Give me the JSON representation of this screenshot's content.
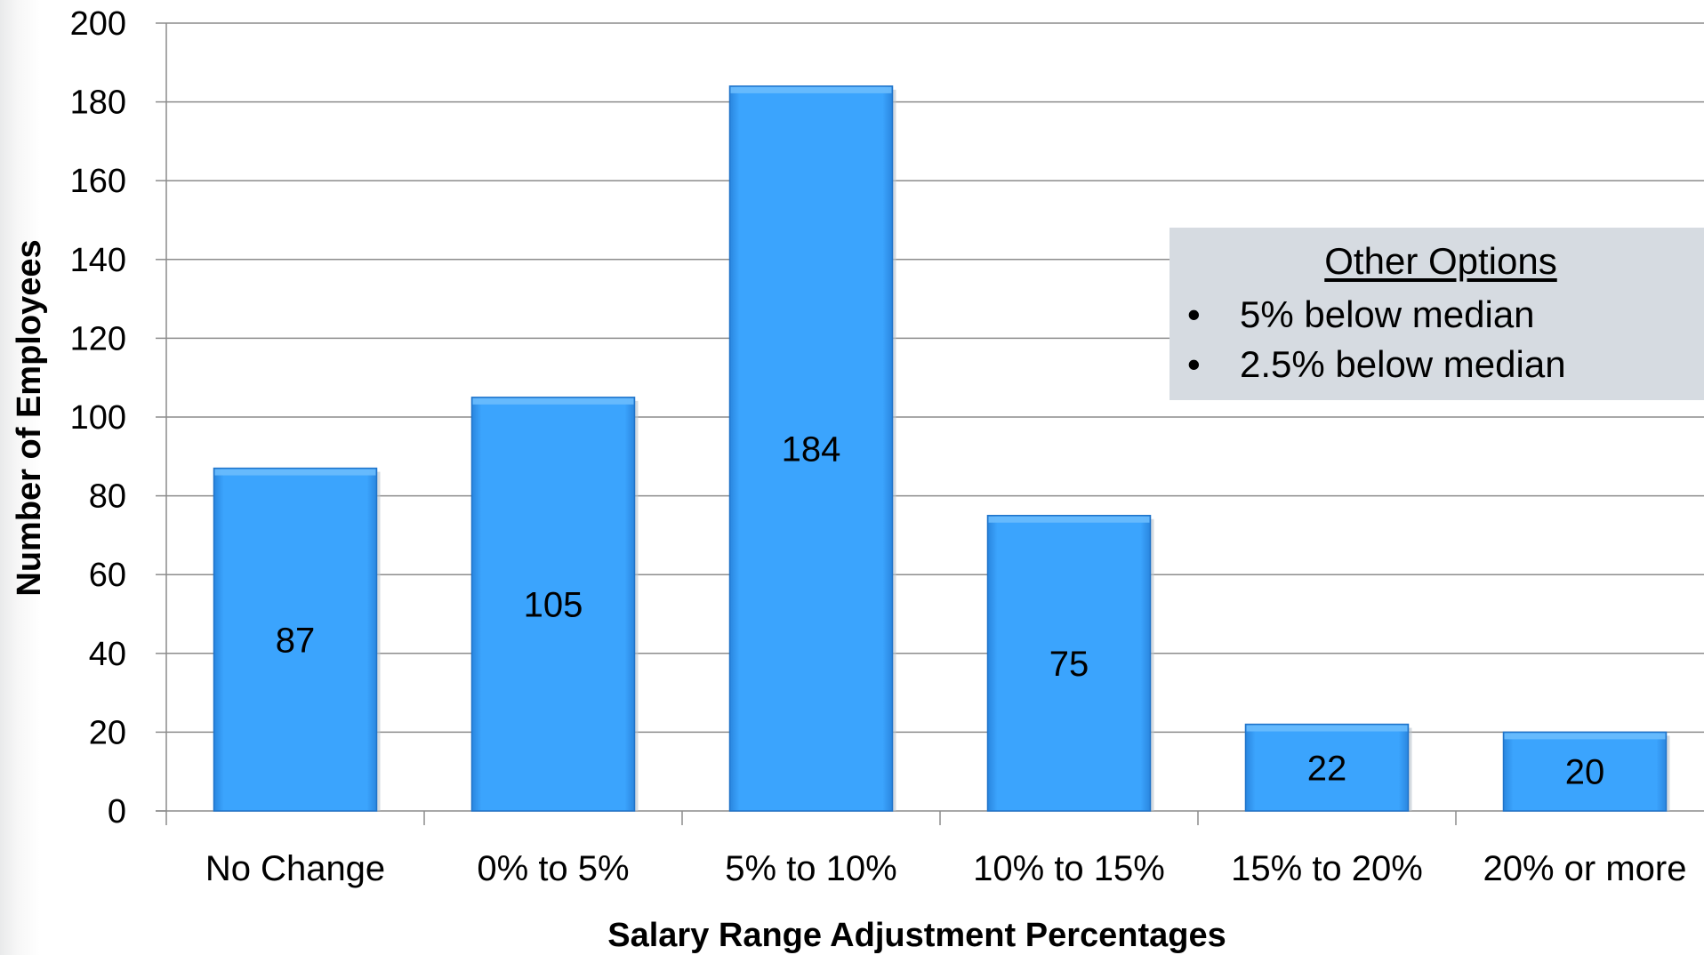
{
  "chart_data": {
    "type": "bar",
    "title": "",
    "xlabel": "Salary Range Adjustment Percentages",
    "ylabel": "Number of Employees",
    "categories": [
      "No Change",
      "0% to 5%",
      "5% to 10%",
      "10% to 15%",
      "15% to 20%",
      "20% or more"
    ],
    "values": [
      87,
      105,
      184,
      75,
      22,
      20
    ],
    "data_labels": [
      "87",
      "105",
      "184",
      "75",
      "22",
      "20"
    ],
    "ylim": [
      0,
      200
    ],
    "yticks": [
      "0",
      "20",
      "40",
      "60",
      "80",
      "100",
      "120",
      "140",
      "160",
      "180",
      "200"
    ],
    "grid": true,
    "bar_color": "#3aa3fc",
    "bar_edge_color": "#1f73c9",
    "grid_color": "#8c8c8c"
  },
  "annotation": {
    "title": "Other Options",
    "items": [
      "5% below median",
      "2.5% below median"
    ],
    "bullet": "•",
    "background_color": "#d6dbe1"
  }
}
